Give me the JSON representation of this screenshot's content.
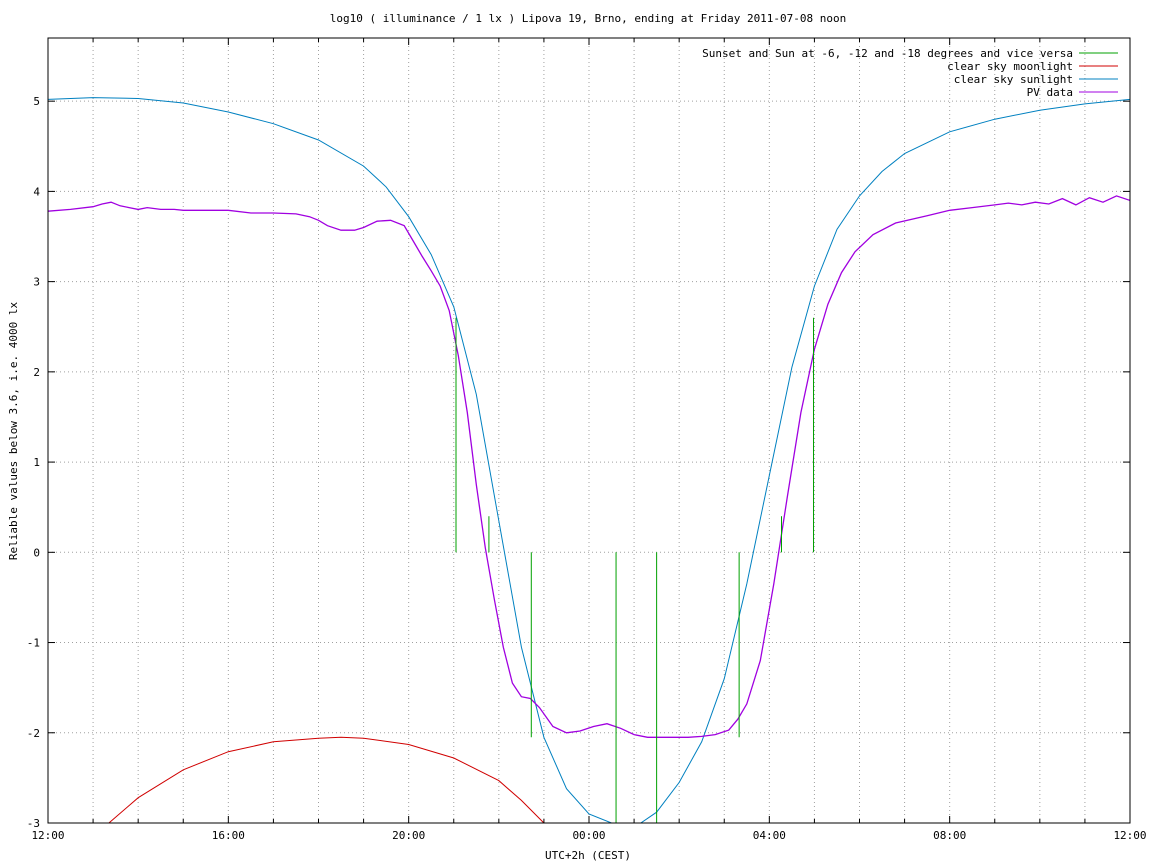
{
  "chart_data": {
    "type": "line",
    "title": "log10 ( illuminance / 1 lx ) Lipova 19, Brno, ending at Friday 2011-07-08 noon",
    "xlabel": "UTC+2h (CEST)",
    "ylabel": "Reliable values below 3.6, i.e. 4000 lx",
    "x_unit": "hours since 12:00 (Thursday 2011-07-07, CEST)",
    "xlim": [
      0,
      24
    ],
    "ylim": [
      -3,
      5.7
    ],
    "grid": true,
    "legend_position": "top-right",
    "x_ticks": [
      {
        "v": 0,
        "label": "12:00"
      },
      {
        "v": 4,
        "label": "16:00"
      },
      {
        "v": 8,
        "label": "20:00"
      },
      {
        "v": 12,
        "label": "00:00"
      },
      {
        "v": 16,
        "label": "04:00"
      },
      {
        "v": 20,
        "label": "08:00"
      },
      {
        "v": 24,
        "label": "12:00"
      }
    ],
    "x_minor_grid": [
      1,
      2,
      3,
      5,
      6,
      7,
      9,
      10,
      11,
      13,
      14,
      15,
      17,
      18,
      19,
      21,
      22,
      23
    ],
    "y_ticks": [
      {
        "v": -3,
        "label": "-3"
      },
      {
        "v": -2,
        "label": "-2"
      },
      {
        "v": -1,
        "label": "-1"
      },
      {
        "v": 0,
        "label": "0"
      },
      {
        "v": 1,
        "label": "1"
      },
      {
        "v": 2,
        "label": "2"
      },
      {
        "v": 3,
        "label": "3"
      },
      {
        "v": 4,
        "label": "4"
      },
      {
        "v": 5,
        "label": "5"
      }
    ],
    "series": [
      {
        "name": "Sunset and Sun at -6, -12 and -18 degrees and vice versa",
        "color": "#00a000",
        "kind": "vlines",
        "lines": [
          {
            "x": 9.05,
            "y0": 0,
            "y1": 2.6
          },
          {
            "x": 9.78,
            "y0": 0,
            "y1": 0.4
          },
          {
            "x": 10.72,
            "y0": 0,
            "y1": -2.05
          },
          {
            "x": 12.6,
            "y0": 0,
            "y1": -3
          },
          {
            "x": 13.5,
            "y0": 0,
            "y1": -3
          },
          {
            "x": 15.33,
            "y0": 0,
            "y1": -2.05
          },
          {
            "x": 16.27,
            "y0": 0,
            "y1": 0.4
          },
          {
            "x": 16.98,
            "y0": 0,
            "y1": 2.6
          }
        ]
      },
      {
        "name": "clear sky moonlight",
        "color": "#d00000",
        "kind": "line",
        "x": [
          1.35,
          2,
          3,
          4,
          5,
          6,
          6.5,
          7,
          8,
          9,
          10,
          10.5,
          11
        ],
        "y": [
          -3,
          -2.72,
          -2.41,
          -2.21,
          -2.1,
          -2.06,
          -2.05,
          -2.06,
          -2.13,
          -2.28,
          -2.53,
          -2.75,
          -3
        ]
      },
      {
        "name": "clear sky sunlight",
        "color": "#0080c0",
        "kind": "line",
        "x": [
          0,
          1,
          2,
          3,
          4,
          5,
          6,
          7,
          7.5,
          8,
          8.5,
          9,
          9.5,
          10,
          10.5,
          11,
          11.5,
          12,
          12.5,
          13.15,
          13.5,
          14,
          14.5,
          15,
          15.5,
          16,
          16.5,
          17,
          17.5,
          18,
          18.5,
          19,
          20,
          21,
          22,
          23,
          24
        ],
        "y": [
          5.02,
          5.04,
          5.03,
          4.98,
          4.88,
          4.75,
          4.57,
          4.28,
          4.05,
          3.72,
          3.3,
          2.72,
          1.75,
          0.35,
          -1.05,
          -2.05,
          -2.62,
          -2.9,
          -3.0,
          -3.0,
          -2.88,
          -2.55,
          -2.1,
          -1.4,
          -0.35,
          0.85,
          2.05,
          2.95,
          3.58,
          3.95,
          4.22,
          4.42,
          4.66,
          4.8,
          4.9,
          4.97,
          5.02
        ]
      },
      {
        "name": "PV data",
        "color": "#a000e0",
        "kind": "line",
        "x": [
          0,
          0.5,
          1,
          1.2,
          1.4,
          1.6,
          1.8,
          2,
          2.2,
          2.5,
          2.8,
          3,
          3.5,
          4,
          4.5,
          5,
          5.5,
          5.8,
          6,
          6.2,
          6.5,
          6.8,
          7,
          7.3,
          7.6,
          7.9,
          8.1,
          8.3,
          8.5,
          8.7,
          8.9,
          9.1,
          9.3,
          9.5,
          9.7,
          9.9,
          10.1,
          10.3,
          10.5,
          10.7,
          10.9,
          11.2,
          11.5,
          11.8,
          12.1,
          12.4,
          12.7,
          13,
          13.3,
          13.6,
          13.9,
          14.2,
          14.5,
          14.8,
          15.1,
          15.3,
          15.5,
          15.8,
          16.1,
          16.4,
          16.7,
          17,
          17.3,
          17.6,
          17.9,
          18.3,
          18.8,
          19.5,
          20,
          20.5,
          21,
          21.3,
          21.6,
          21.9,
          22.2,
          22.5,
          22.8,
          23.1,
          23.4,
          23.7,
          24
        ],
        "y": [
          3.78,
          3.8,
          3.83,
          3.86,
          3.88,
          3.84,
          3.82,
          3.8,
          3.82,
          3.8,
          3.8,
          3.79,
          3.79,
          3.79,
          3.76,
          3.76,
          3.75,
          3.72,
          3.68,
          3.62,
          3.57,
          3.57,
          3.6,
          3.67,
          3.68,
          3.62,
          3.45,
          3.28,
          3.12,
          2.95,
          2.68,
          2.18,
          1.55,
          0.75,
          0.05,
          -0.52,
          -1.05,
          -1.45,
          -1.6,
          -1.62,
          -1.72,
          -1.93,
          -2.0,
          -1.98,
          -1.93,
          -1.9,
          -1.95,
          -2.02,
          -2.05,
          -2.05,
          -2.05,
          -2.05,
          -2.04,
          -2.02,
          -1.97,
          -1.85,
          -1.68,
          -1.2,
          -0.35,
          0.62,
          1.55,
          2.25,
          2.75,
          3.1,
          3.33,
          3.52,
          3.65,
          3.73,
          3.79,
          3.82,
          3.85,
          3.87,
          3.85,
          3.88,
          3.86,
          3.92,
          3.85,
          3.93,
          3.88,
          3.95,
          3.9
        ]
      }
    ]
  }
}
